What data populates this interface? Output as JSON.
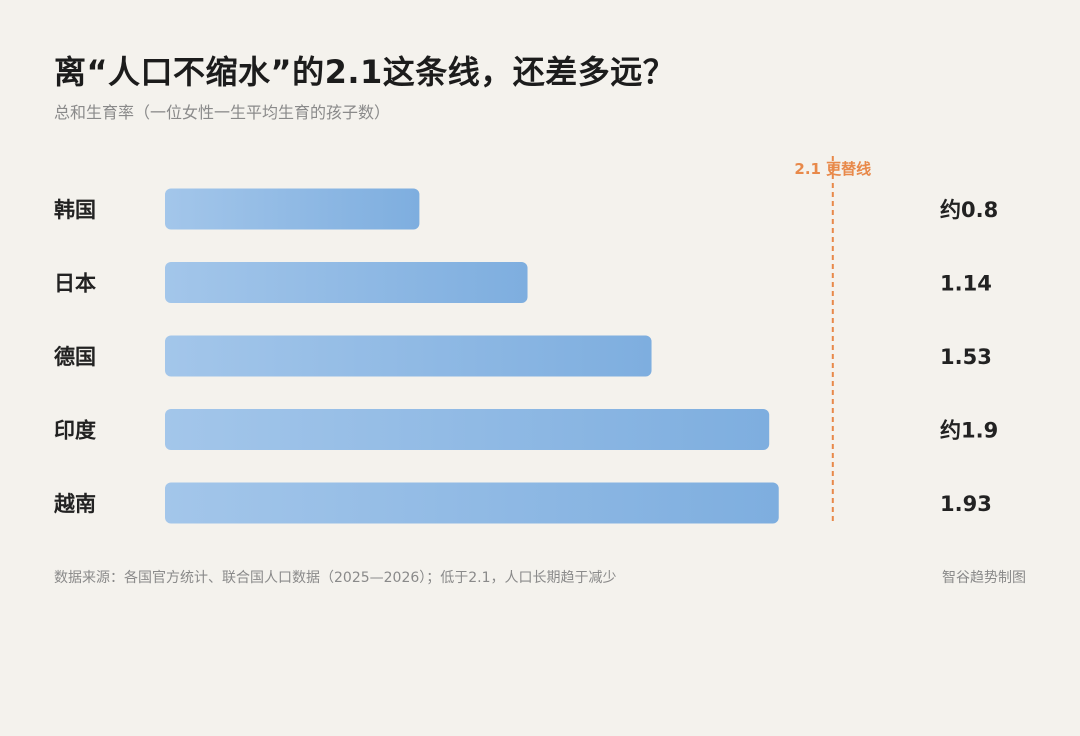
{
  "header": {
    "title": "离“人口不缩水”的2.1这条线，还差多远？",
    "subtitle": "总和生育率（一位女性一生平均生育的孩子数）"
  },
  "footer": {
    "source": "数据来源：各国官方统计、联合国人口数据（2025—2026）；低于2.1，人口长期趋于减少",
    "credit": "智谷趋势制图"
  },
  "colors": {
    "bar_start": "#a3c6ea",
    "bar_end": "#7eaedf",
    "reference_line": "#e8894a",
    "background": "#f4f2ed"
  },
  "chart_data": {
    "type": "bar",
    "orientation": "horizontal",
    "categories": [
      "韩国",
      "日本",
      "德国",
      "印度",
      "越南"
    ],
    "values": [
      0.8,
      1.14,
      1.53,
      1.9,
      1.93
    ],
    "value_labels": [
      "约0.8",
      "1.14",
      "1.53",
      "约1.9",
      "1.93"
    ],
    "xlim": [
      0,
      2.1
    ],
    "reference_line": {
      "value": 2.1,
      "label": "2.1 更替线"
    },
    "grid": false,
    "legend": "none"
  }
}
